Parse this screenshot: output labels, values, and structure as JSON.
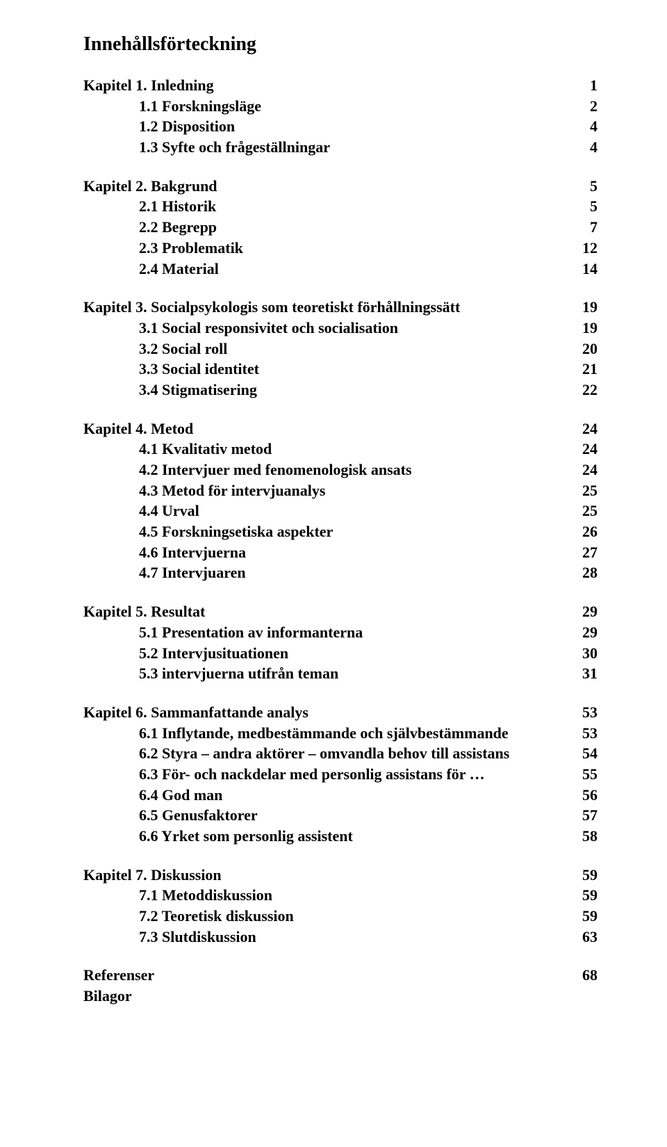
{
  "title": "Innehållsförteckning",
  "chapters": [
    {
      "label": "Kapitel 1. Inledning",
      "page": "1",
      "subs": [
        {
          "label": "1.1 Forskningsläge",
          "page": "2"
        },
        {
          "label": "1.2 Disposition",
          "page": "4"
        },
        {
          "label": "1.3 Syfte och frågeställningar",
          "page": "4"
        }
      ]
    },
    {
      "label": "Kapitel 2. Bakgrund",
      "page": "5",
      "subs": [
        {
          "label": "2.1 Historik",
          "page": "5"
        },
        {
          "label": "2.2 Begrepp",
          "page": "7"
        },
        {
          "label": "2.3 Problematik",
          "page": "12"
        },
        {
          "label": "2.4 Material",
          "page": "14"
        }
      ]
    },
    {
      "label": "Kapitel 3. Socialpsykologis som teoretiskt förhållningssätt",
      "page": "19",
      "subs": [
        {
          "label": "3.1 Social responsivitet och socialisation",
          "page": "19"
        },
        {
          "label": "3.2 Social roll",
          "page": "20"
        },
        {
          "label": "3.3 Social identitet",
          "page": "21"
        },
        {
          "label": "3.4 Stigmatisering",
          "page": "22"
        }
      ]
    },
    {
      "label": "Kapitel 4. Metod",
      "page": "24",
      "subs": [
        {
          "label": "4.1 Kvalitativ metod",
          "page": "24"
        },
        {
          "label": "4.2 Intervjuer med fenomenologisk ansats",
          "page": "24"
        },
        {
          "label": "4.3 Metod för intervjuanalys",
          "page": "25"
        },
        {
          "label": "4.4 Urval",
          "page": "25"
        },
        {
          "label": "4.5 Forskningsetiska aspekter",
          "page": "26"
        },
        {
          "label": "4.6 Intervjuerna",
          "page": "27"
        },
        {
          "label": "4.7 Intervjuaren",
          "page": "28"
        }
      ]
    },
    {
      "label": "Kapitel 5. Resultat",
      "page": "29",
      "subs": [
        {
          "label": "5.1 Presentation av informanterna",
          "page": "29"
        },
        {
          "label": "5.2 Intervjusituationen",
          "page": "30"
        },
        {
          "label": "5.3 intervjuerna utifrån teman",
          "page": "31"
        }
      ]
    },
    {
      "label": "Kapitel 6. Sammanfattande analys",
      "page": "53",
      "subs": [
        {
          "label": "6.1 Inflytande, medbestämmande och självbestämmande",
          "page": "53"
        },
        {
          "label": "6.2 Styra – andra aktörer – omvandla behov till assistans",
          "page": "54"
        },
        {
          "label": "6.3 För- och nackdelar med personlig assistans för …",
          "page": "55"
        },
        {
          "label": "6.4 God man",
          "page": "56"
        },
        {
          "label": "6.5 Genusfaktorer",
          "page": "57"
        },
        {
          "label": "6.6 Yrket som personlig assistent",
          "page": "58"
        }
      ]
    },
    {
      "label": "Kapitel 7. Diskussion",
      "page": "59",
      "subs": [
        {
          "label": "7.1 Metoddiskussion",
          "page": "59"
        },
        {
          "label": "7.2 Teoretisk diskussion",
          "page": "59"
        },
        {
          "label": "7.3 Slutdiskussion",
          "page": "63"
        }
      ]
    }
  ],
  "tail": [
    {
      "label": "Referenser",
      "page": "68"
    },
    {
      "label": "Bilagor",
      "page": ""
    }
  ]
}
